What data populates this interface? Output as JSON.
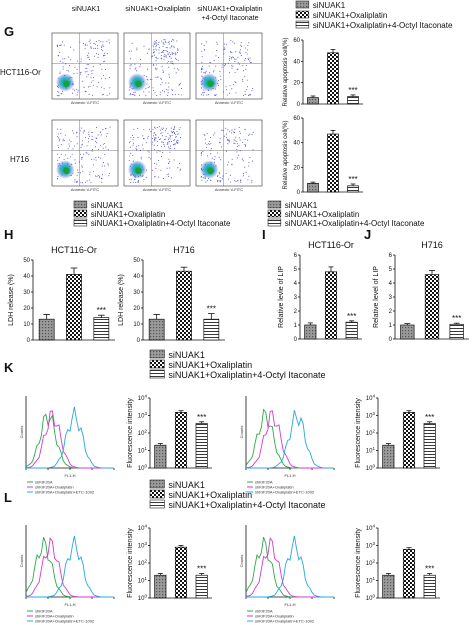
{
  "panels": {
    "G": {
      "label": "G",
      "cells": [
        "HCT116-Or",
        "H716"
      ],
      "columns": [
        "siNUAK1",
        "siNUAK1+Oxaliplatin",
        "siNUAK1+Oxaliplatin\n+4-Octyl Itaconate"
      ],
      "axis_x": "Annexin V-FITC",
      "axis_y": "PI",
      "legend": [
        "siNUAK1",
        "siNUAK1+Oxaliplatin",
        "siNUAK1+Oxaliplatin+4-Octyl Itaconate"
      ]
    },
    "H": {
      "label": "H",
      "legend": [
        "siNUAK1",
        "siNUAK1+Oxaliplatin",
        "siNUAK1+Oxaliplatin+4-Octyl Itaconate"
      ]
    },
    "I": {
      "label": "I"
    },
    "J": {
      "label": "J"
    },
    "K": {
      "label": "K",
      "legend": [
        "siNUAK1",
        "siNUAK1+Oxaliplatin",
        "siNUAK1+Oxaliplatin+4-Octyl Itaconate"
      ],
      "hist_legend": [
        "shKIF20A",
        "shKIF20A+Oxaliplatin",
        "shKIF20A+Oxaliplatin+ETC-1002"
      ],
      "hist_xlabel": "FL1-H"
    },
    "L": {
      "label": "L",
      "legend": [
        "siNUAK1",
        "siNUAK1+Oxaliplatin",
        "siNUAK1+Oxaliplatin+4-Octyl Itaconate"
      ],
      "hist_legend": [
        "shKIF20A",
        "shKIF20A+Oxaliplatin",
        "shKIF20A+Oxaliplatin+ETC-1002"
      ],
      "hist_xlabel": "FL1-H"
    }
  },
  "significance": "***",
  "colors": {
    "hist_green": "#2ea84a",
    "hist_magenta": "#d63ad1",
    "hist_blue": "#2aa8d8",
    "flow_core": "#1a9e3a",
    "flow_dots": "#3b3bd6"
  },
  "chart_data": [
    {
      "id": "G-HCT116-Or",
      "type": "bar",
      "categories": [
        "siNUAK1",
        "siNUAK1+Oxaliplatin",
        "siNUAK1+Oxaliplatin+4-Octyl Itaconate"
      ],
      "values": [
        6,
        48,
        7
      ],
      "errors": [
        1.5,
        3,
        1.5
      ],
      "ylabel": "Relative apoptosis cell(%)",
      "ylim": [
        0,
        60
      ],
      "yticks": [
        0,
        20,
        40,
        60
      ],
      "annotation": "***"
    },
    {
      "id": "G-H716",
      "type": "bar",
      "categories": [
        "siNUAK1",
        "siNUAK1+Oxaliplatin",
        "siNUAK1+Oxaliplatin+4-Octyl Itaconate"
      ],
      "values": [
        7,
        47,
        5
      ],
      "errors": [
        1,
        3,
        1.5
      ],
      "ylabel": "Relative apoptosis cell(%)",
      "ylim": [
        0,
        60
      ],
      "yticks": [
        0,
        20,
        40,
        60
      ],
      "annotation": "***"
    },
    {
      "id": "H-HCT116-Or",
      "type": "bar",
      "title": "HCT116-Or",
      "categories": [
        "siNUAK1",
        "siNUAK1+Oxaliplatin",
        "siNUAK1+Oxaliplatin+4-Octyl Itaconate"
      ],
      "values": [
        13,
        41,
        14
      ],
      "errors": [
        3,
        4,
        1.5
      ],
      "ylabel": "LDH release (%)",
      "ylim": [
        0,
        50
      ],
      "yticks": [
        0,
        10,
        20,
        30,
        40,
        50
      ],
      "annotation": "***"
    },
    {
      "id": "H-H716",
      "type": "bar",
      "title": "H716",
      "categories": [
        "siNUAK1",
        "siNUAK1+Oxaliplatin",
        "siNUAK1+Oxaliplatin+4-Octyl Itaconate"
      ],
      "values": [
        13,
        43,
        13
      ],
      "errors": [
        3,
        2.5,
        3.5
      ],
      "ylabel": "LDH release (%)",
      "ylim": [
        0,
        50
      ],
      "yticks": [
        0,
        10,
        20,
        30,
        40,
        50
      ],
      "annotation": "***"
    },
    {
      "id": "I",
      "type": "bar",
      "title": "HCT116-Or",
      "categories": [
        "siNUAK1",
        "siNUAK1+Oxaliplatin",
        "siNUAK1+Oxaliplatin+4-Octyl Itaconate"
      ],
      "values": [
        1.0,
        4.8,
        1.2
      ],
      "errors": [
        0.15,
        0.35,
        0.1
      ],
      "ylabel": "Relative levle of LIP",
      "ylim": [
        0,
        6
      ],
      "yticks": [
        0,
        1,
        2,
        3,
        4,
        5,
        6
      ],
      "annotation": "***"
    },
    {
      "id": "J",
      "type": "bar",
      "title": "H716",
      "categories": [
        "siNUAK1",
        "siNUAK1+Oxaliplatin",
        "siNUAK1+Oxaliplatin+4-Octyl Itaconate"
      ],
      "values": [
        1.0,
        4.6,
        1.05
      ],
      "errors": [
        0.1,
        0.3,
        0.08
      ],
      "ylabel": "Relative level of LIP",
      "ylim": [
        0,
        6
      ],
      "yticks": [
        0,
        1,
        2,
        3,
        4,
        5,
        6
      ],
      "annotation": "***"
    },
    {
      "id": "K-1",
      "type": "bar",
      "scale": "log",
      "categories": [
        "siNUAK1",
        "siNUAK1+Oxaliplatin",
        "siNUAK1+Oxaliplatin+4-Octyl Itaconate"
      ],
      "values": [
        20,
        1500,
        350
      ],
      "ylabel": "Fluorescence intensity",
      "ylim": [
        1,
        10000
      ],
      "ytick_labels": [
        "10^0",
        "10^1",
        "10^2",
        "10^3",
        "10^4"
      ],
      "annotation": "***"
    },
    {
      "id": "K-2",
      "type": "bar",
      "scale": "log",
      "categories": [
        "siNUAK1",
        "siNUAK1+Oxaliplatin",
        "siNUAK1+Oxaliplatin+4-Octyl Itaconate"
      ],
      "values": [
        20,
        1500,
        350
      ],
      "ylabel": "Fluorescence intensity",
      "ylim": [
        1,
        10000
      ],
      "ytick_labels": [
        "10^0",
        "10^1",
        "10^2",
        "10^3",
        "10^4"
      ],
      "annotation": "***"
    },
    {
      "id": "L-1",
      "type": "bar",
      "scale": "log",
      "categories": [
        "siNUAK1",
        "siNUAK1+Oxaliplatin",
        "siNUAK1+Oxaliplatin+4-Octyl Itaconate"
      ],
      "values": [
        20,
        800,
        20
      ],
      "ylabel": "Fluorescence intensity",
      "ylim": [
        1,
        10000
      ],
      "ytick_labels": [
        "10^0",
        "10^1",
        "10^2",
        "10^3",
        "10^4"
      ],
      "annotation": "***"
    },
    {
      "id": "L-2",
      "type": "bar",
      "scale": "log",
      "categories": [
        "siNUAK1",
        "siNUAK1+Oxaliplatin",
        "siNUAK1+Oxaliplatin+4-Octyl Itaconate"
      ],
      "values": [
        20,
        600,
        20
      ],
      "ylabel": "Fluorescence intensity",
      "ylim": [
        1,
        10000
      ],
      "ytick_labels": [
        "10^0",
        "10^1",
        "10^2",
        "10^3",
        "10^4"
      ],
      "annotation": "***"
    }
  ]
}
